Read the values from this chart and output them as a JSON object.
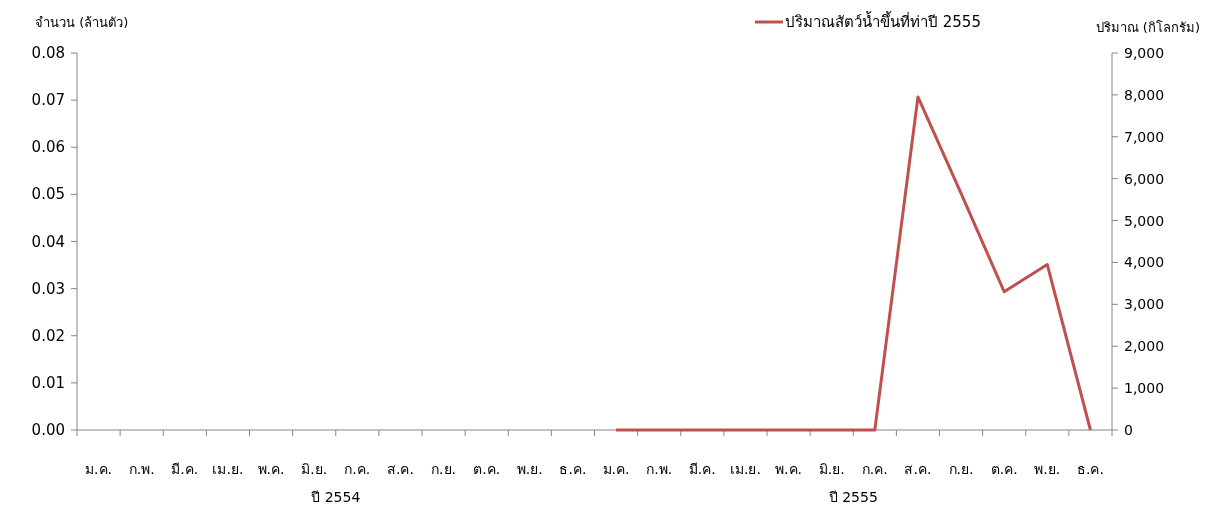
{
  "chart_data": {
    "type": "line",
    "ylabel": "จำนวน (ล้านตัว)",
    "y2label": "ปริมาณ (กิโลกรัม)",
    "categories": [
      "ม.ค.",
      "ก.พ.",
      "มี.ค.",
      "เม.ย.",
      "พ.ค.",
      "มิ.ย.",
      "ก.ค.",
      "ส.ค.",
      "ก.ย.",
      "ต.ค.",
      "พ.ย.",
      "ธ.ค.",
      "ม.ค.",
      "ก.พ.",
      "มี.ค.",
      "เม.ย.",
      "พ.ค.",
      "มิ.ย.",
      "ก.ค.",
      "ส.ค.",
      "ก.ย.",
      "ต.ค.",
      "พ.ย.",
      "ธ.ค."
    ],
    "series": [
      {
        "name": "ปริมาณสัตว์น้ำขึ้นที่ท่าปี 2555",
        "color": "#c0504d",
        "axis": "y2",
        "values": [
          null,
          null,
          null,
          null,
          null,
          null,
          null,
          null,
          null,
          null,
          null,
          null,
          0,
          0,
          0,
          0,
          0,
          0,
          0,
          7950,
          5650,
          3300,
          3950,
          0
        ]
      }
    ],
    "ylim": [
      0,
      0.08
    ],
    "yticks": [
      {
        "value": 0,
        "label": "0.00"
      },
      {
        "value": 0.01,
        "label": "0.01"
      },
      {
        "value": 0.02,
        "label": "0.02"
      },
      {
        "value": 0.03,
        "label": "0.03"
      },
      {
        "value": 0.04,
        "label": "0.04"
      },
      {
        "value": 0.05,
        "label": "0.05"
      },
      {
        "value": 0.06,
        "label": "0.06"
      },
      {
        "value": 0.07,
        "label": "0.07"
      },
      {
        "value": 0.08,
        "label": "0.08"
      }
    ],
    "y2lim": [
      0,
      9000
    ],
    "y2ticks": [
      0,
      {
        "value": 1000,
        "label": "1,000"
      },
      {
        "value": 2000,
        "label": "2,000"
      },
      {
        "value": 3000,
        "label": "3,000"
      },
      {
        "value": 4000,
        "label": "4,000"
      },
      {
        "value": 5000,
        "label": "5,000"
      },
      {
        "value": 6000,
        "label": "6,000"
      },
      {
        "value": 7000,
        "label": "7,000"
      },
      {
        "value": 8000,
        "label": "8,000"
      },
      {
        "value": 9000,
        "label": "9,000"
      }
    ],
    "annotations": [
      "ปี 2554",
      "ปี 2555"
    ],
    "legend": "top",
    "grid": false,
    "marker": "none",
    "line_style": "solid"
  }
}
